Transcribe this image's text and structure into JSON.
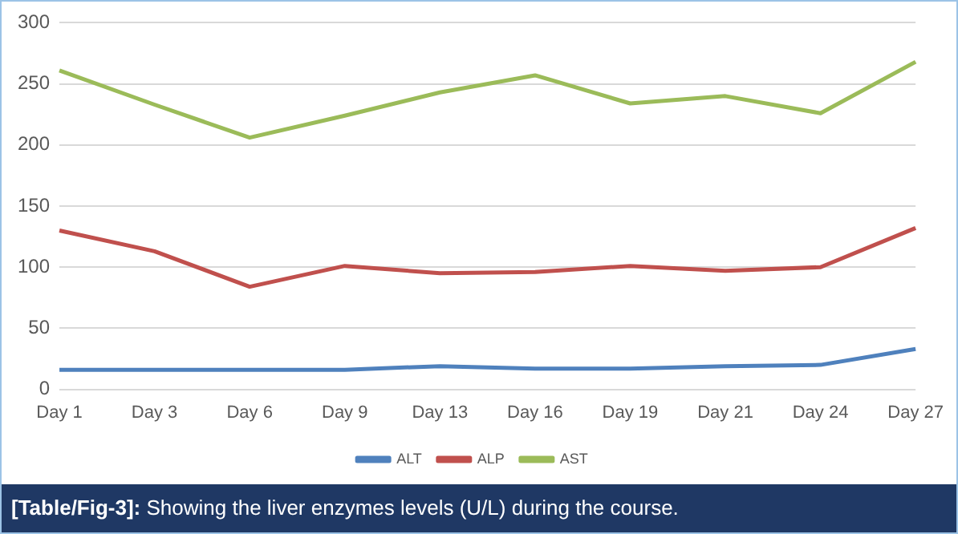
{
  "chart_data": {
    "type": "line",
    "categories": [
      "Day 1",
      "Day 3",
      "Day 6",
      "Day 9",
      "Day 13",
      "Day 16",
      "Day 19",
      "Day 21",
      "Day 24",
      "Day 27"
    ],
    "series": [
      {
        "name": "ALT",
        "color": "#4f81bd",
        "values": [
          16,
          16,
          16,
          16,
          19,
          17,
          17,
          19,
          20,
          33
        ]
      },
      {
        "name": "ALP",
        "color": "#c0504d",
        "values": [
          130,
          113,
          84,
          101,
          95,
          96,
          101,
          97,
          100,
          132
        ]
      },
      {
        "name": "AST",
        "color": "#9bbb59",
        "values": [
          261,
          233,
          206,
          224,
          243,
          257,
          234,
          240,
          226,
          268
        ]
      }
    ],
    "ylim": [
      0,
      300
    ],
    "yticks": [
      0,
      50,
      100,
      150,
      200,
      250,
      300
    ],
    "grid": "y",
    "legend": "bottom",
    "marker": "none",
    "annotations": [
      "[Table/Fig-3]: Showing the liver enzymes levels (U/L) during the course."
    ]
  }
}
